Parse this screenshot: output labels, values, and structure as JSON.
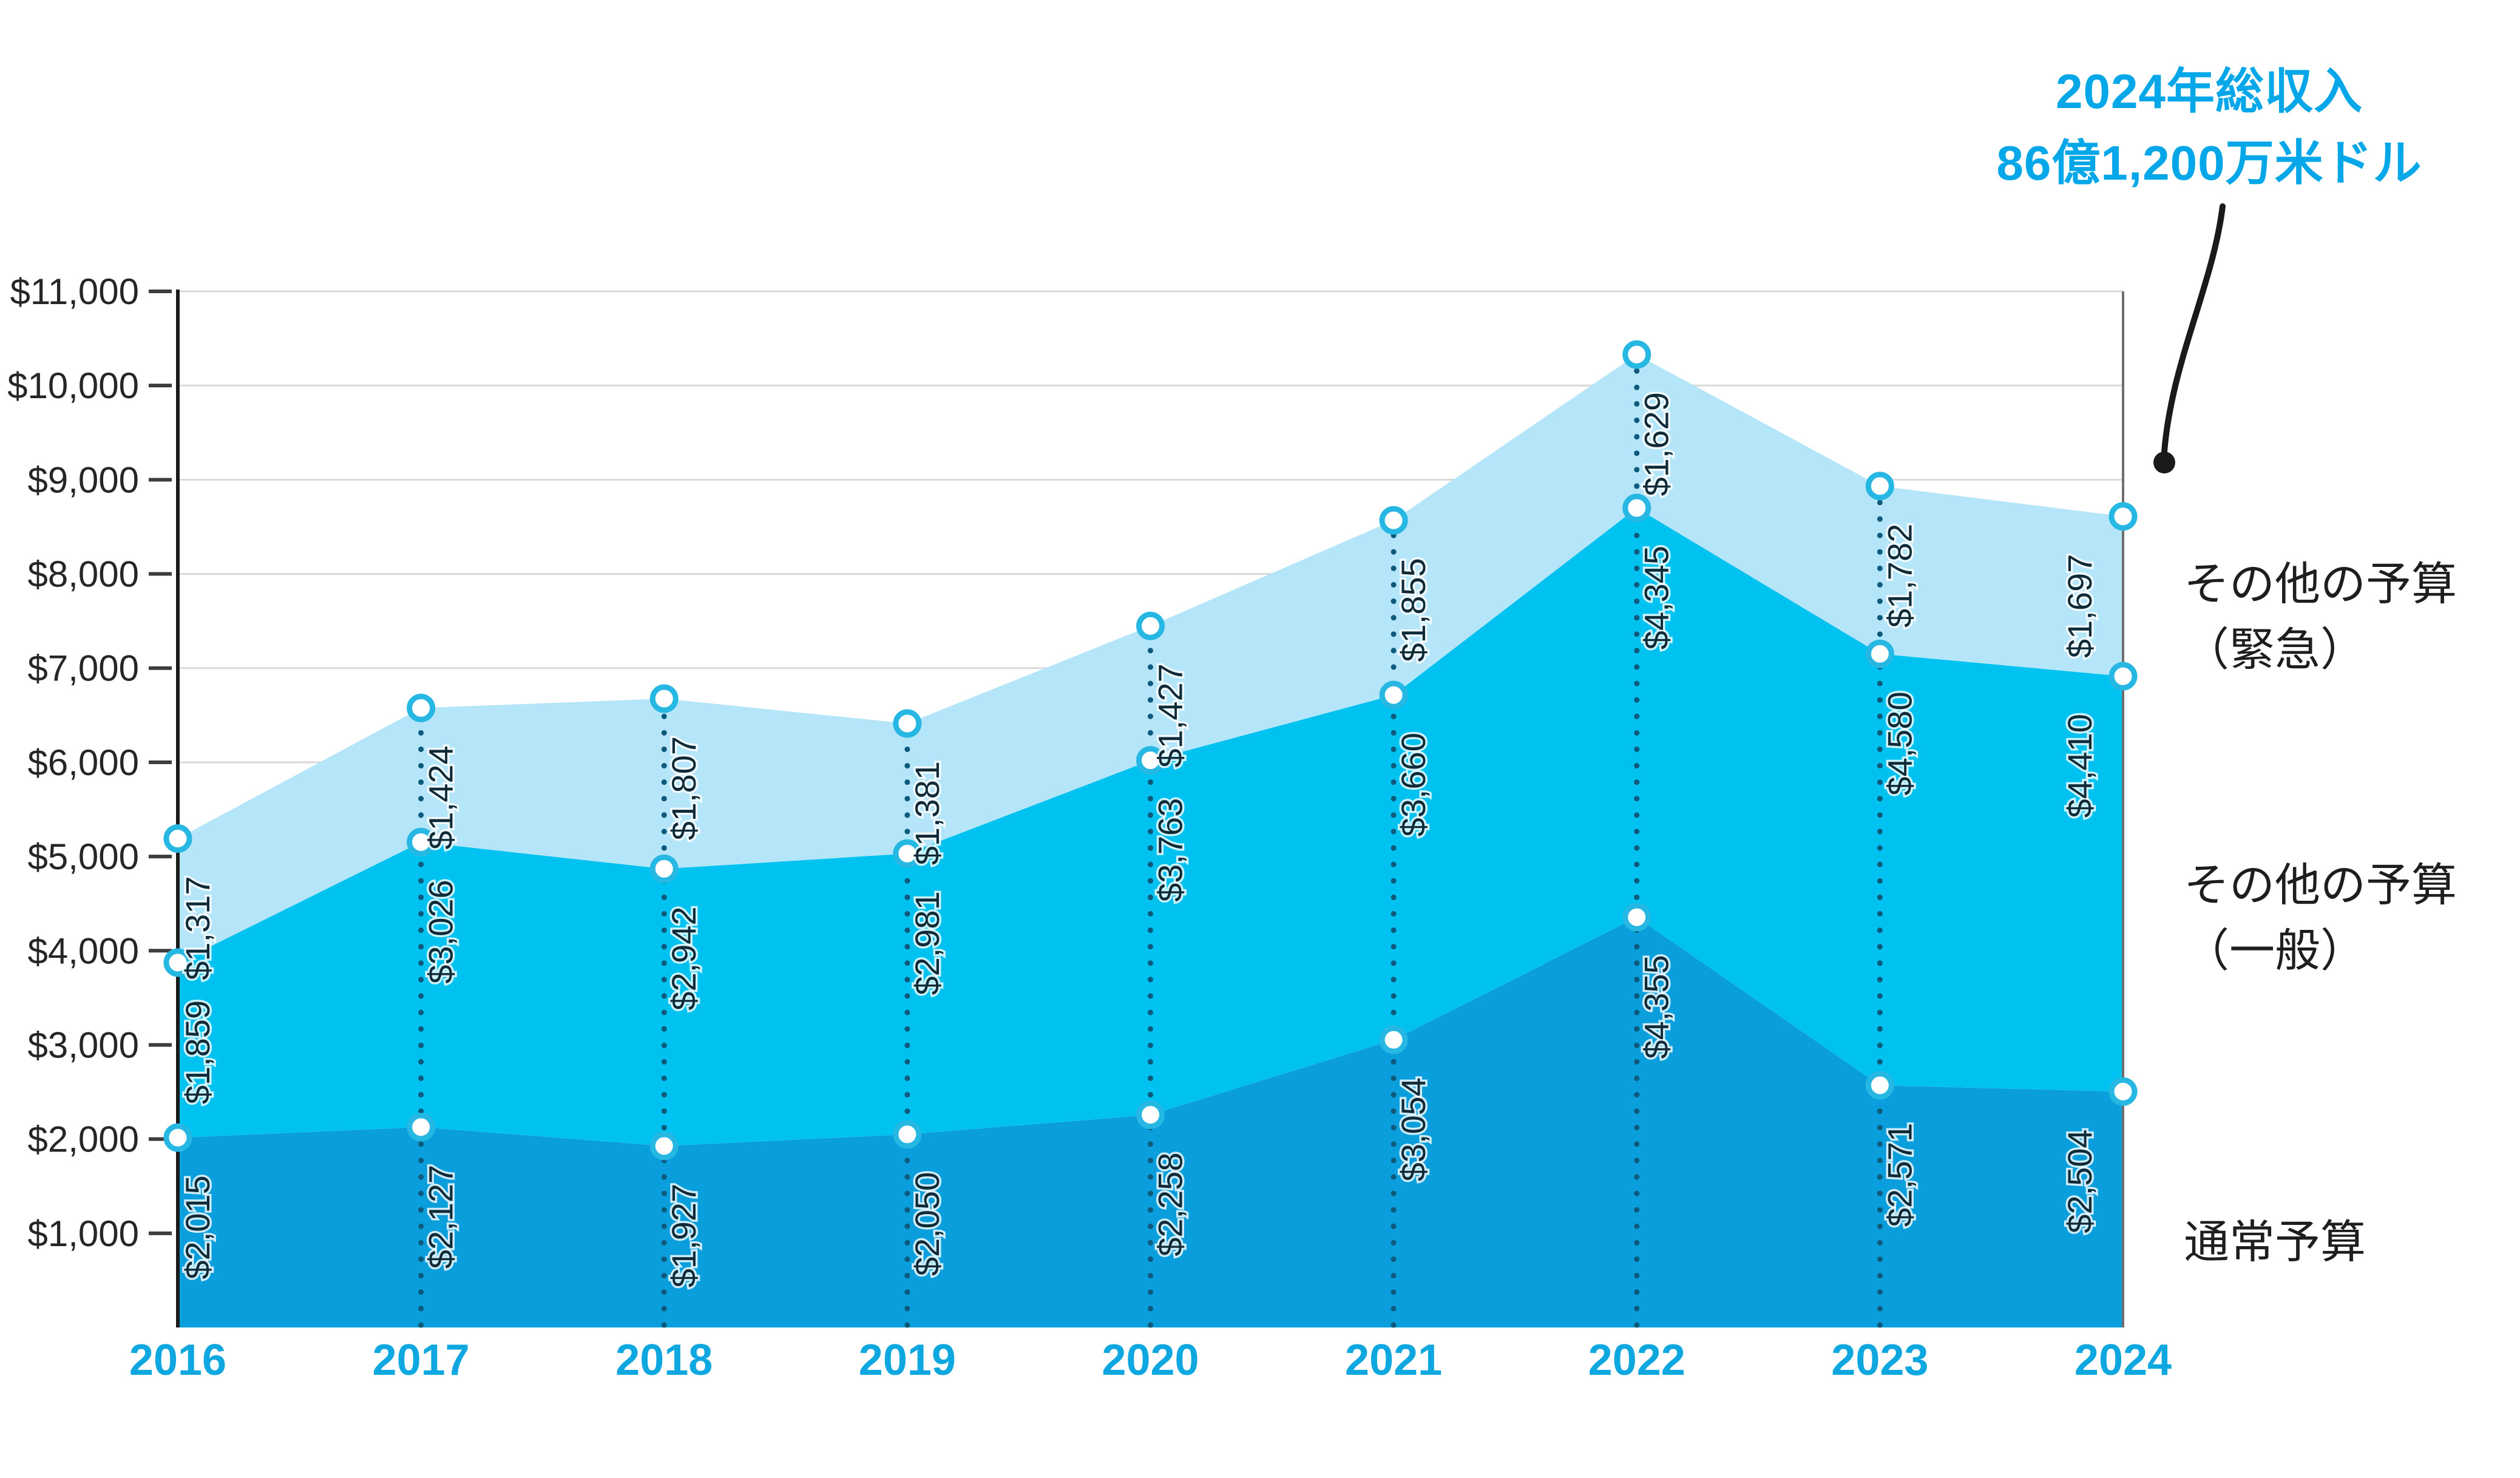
{
  "page": {
    "background": "#ffffff"
  },
  "colors": {
    "series_regular": "#0a9fdc",
    "series_general": "#00c2f1",
    "series_emergency": "#b5e5f9",
    "marker_stroke": "#26b7e3",
    "marker_fill": "#ffffff",
    "dotted_guide": "#0e5a7d",
    "grid_line": "#d9d9d9",
    "y_axis_line": "#1a1a1a",
    "right_border": "#6e6e6e",
    "tick_mark": "#3d3d3d",
    "y_tick_label": "#262626",
    "x_tick_label": "#0fa7df",
    "data_label": "#102a38",
    "legend_text": "#1e1e1e",
    "annotation_text": "#06a7e8",
    "arrow": "#1a1a1a"
  },
  "annotation": {
    "line1": "2024年総収入",
    "line2": "86億1,200万米ドル"
  },
  "legend": {
    "items": [
      {
        "line1": "その他の予算",
        "line2": "（緊急）"
      },
      {
        "line1": "その他の予算",
        "line2": "（一般）"
      },
      {
        "line1": "通常予算",
        "line2": ""
      }
    ]
  },
  "chart_data": {
    "type": "area",
    "stacked": true,
    "title": "",
    "xlabel": "",
    "ylabel": "",
    "currency_prefix": "$",
    "grid": true,
    "legend_position": "right",
    "ylim": [
      0,
      11000
    ],
    "ytick_step": 1000,
    "categories": [
      "2016",
      "2017",
      "2018",
      "2019",
      "2020",
      "2021",
      "2022",
      "2023",
      "2024"
    ],
    "series": [
      {
        "name": "通常予算",
        "color": "#0a9fdc",
        "values": [
          2015,
          2127,
          1927,
          2050,
          2258,
          3054,
          4355,
          2571,
          2504
        ]
      },
      {
        "name": "その他の予算（一般）",
        "color": "#00c2f1",
        "values": [
          1859,
          3026,
          2942,
          2981,
          3763,
          3660,
          4345,
          4580,
          4410
        ]
      },
      {
        "name": "その他の予算（緊急）",
        "color": "#b5e5f9",
        "values": [
          1317,
          1424,
          1807,
          1381,
          1427,
          1855,
          1629,
          1782,
          1697
        ]
      }
    ],
    "totals": [
      5191,
      6577,
      6676,
      6412,
      7448,
      8569,
      10329,
      8933,
      8611
    ],
    "annotation_target": {
      "category": "2024",
      "value": 8611
    }
  }
}
